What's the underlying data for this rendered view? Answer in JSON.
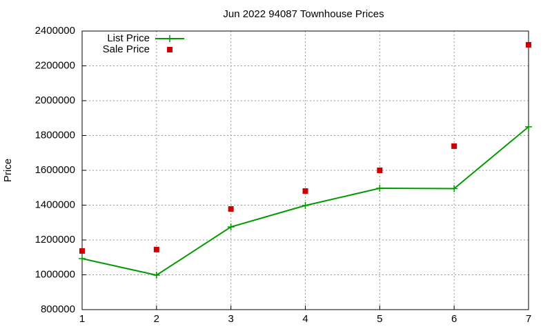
{
  "chart_data": {
    "type": "line",
    "title": "Jun 2022 94087 Townhouse Prices",
    "y_label": "Price",
    "x": [
      1,
      2,
      3,
      4,
      5,
      6,
      7
    ],
    "series": [
      {
        "name": "List Price",
        "color": "#009900",
        "style": "linespoints",
        "values": [
          1093000,
          998000,
          1275000,
          1398000,
          1497000,
          1495000,
          1850000
        ]
      },
      {
        "name": "Sale Price",
        "color": "#cc0000",
        "style": "points",
        "values": [
          1137000,
          1145000,
          1378000,
          1481000,
          1600000,
          1739000,
          2321000
        ]
      }
    ],
    "xlim": [
      1,
      7
    ],
    "xticks": [
      1,
      2,
      3,
      4,
      5,
      6,
      7
    ],
    "ylim": [
      800000,
      2400000
    ],
    "yticks": [
      800000,
      1000000,
      1200000,
      1400000,
      1600000,
      1800000,
      2000000,
      2200000,
      2400000
    ],
    "grid": true,
    "legend": "top-left"
  }
}
